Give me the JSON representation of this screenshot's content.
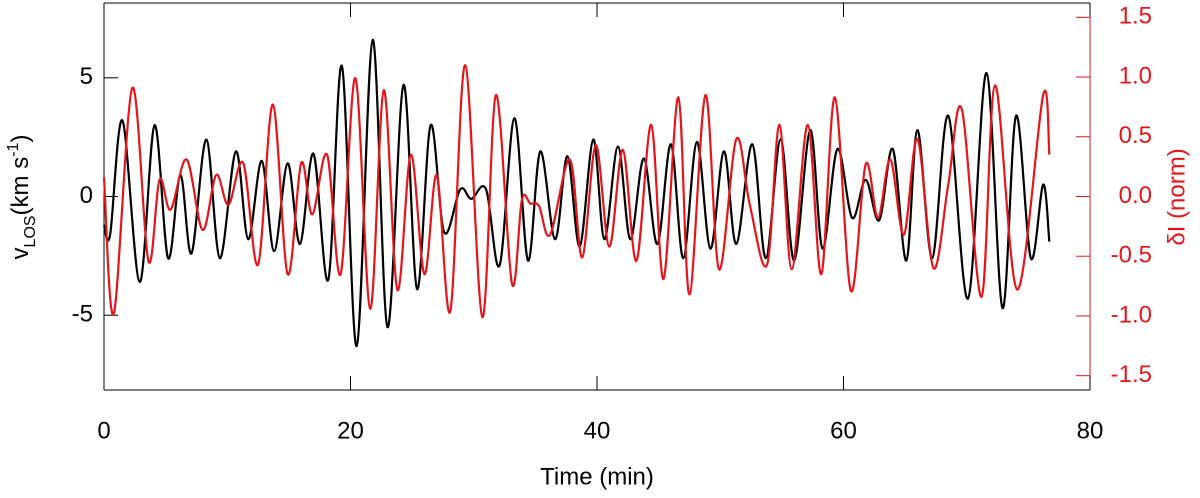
{
  "chart_data": {
    "type": "line",
    "xlabel": "Time (min)",
    "ylabel_parts": [
      "v",
      "LOS",
      "(km s",
      "-1",
      ")"
    ],
    "y2label": "δI (norm)",
    "xlim": [
      0,
      80
    ],
    "xticks": [
      0,
      20,
      40,
      60,
      80
    ],
    "ylim": [
      -8.15,
      8.15
    ],
    "yticks": [
      -5,
      0,
      5
    ],
    "y2lim": [
      -1.62,
      1.62
    ],
    "y2ticks": [
      -1.5,
      {
        "value": -1,
        "label": "-1.0"
      },
      -0.5,
      {
        "value": 0,
        "label": "0.0"
      },
      0.5,
      {
        "value": 1,
        "label": "1.0"
      },
      1.5
    ],
    "series": [
      {
        "color": "#000000",
        "x": [
          0,
          0.5,
          1.5,
          2.9,
          4.1,
          5.2,
          6.2,
          7.1,
          8.3,
          9.4,
          10.7,
          11.7,
          12.8,
          13.8,
          14.9,
          15.9,
          17,
          18.2,
          19.3,
          20.5,
          21.8,
          23,
          24.3,
          25.4,
          26.5,
          27.6,
          28.9,
          29.8,
          31,
          32.1,
          33.3,
          34.4,
          35.4,
          36.6,
          37.6,
          38.6,
          39.7,
          40.6,
          41.7,
          42.7,
          43.8,
          44.9,
          46,
          47,
          48.1,
          49.2,
          50.3,
          51.3,
          52.6,
          53.7,
          54.9,
          56,
          57.3,
          58.3,
          59.5,
          60.7,
          61.8,
          62.9,
          64,
          65.1,
          66,
          67.2,
          68.5,
          70.1,
          71.6,
          72.9,
          74,
          75.2,
          76.2,
          76.7
        ],
        "values": [
          -1.2,
          -1.6,
          3.2,
          -3.6,
          3.0,
          -2.6,
          0.9,
          -2.4,
          2.4,
          -2.6,
          1.9,
          -1.8,
          1.5,
          -2.3,
          1.4,
          -2.0,
          1.8,
          -3.5,
          5.5,
          -6.3,
          6.6,
          -5.5,
          4.7,
          -3.9,
          3.0,
          -1.5,
          0.3,
          -0.1,
          0.3,
          -2.9,
          3.3,
          -2.7,
          1.9,
          -1.8,
          1.7,
          -2.1,
          2.4,
          -1.8,
          2.1,
          -1.8,
          1.6,
          -2.0,
          2.2,
          -2.6,
          2.3,
          -2.2,
          1.9,
          -2.0,
          2.2,
          -2.6,
          2.4,
          -2.7,
          2.8,
          -2.2,
          2.0,
          -0.9,
          0.7,
          -1.0,
          2.0,
          -2.7,
          2.8,
          -2.6,
          3.4,
          -4.3,
          5.2,
          -4.7,
          3.4,
          -2.6,
          0.5,
          -1.9
        ]
      },
      {
        "color": "#e4161b",
        "axis": "y2",
        "x": [
          0,
          0.8,
          2.3,
          3.6,
          4.5,
          5.4,
          6.7,
          8,
          9.1,
          10.1,
          11.3,
          12.5,
          13.7,
          14.9,
          16,
          16.9,
          18.1,
          19.2,
          20.4,
          21.6,
          22.7,
          23.8,
          24.9,
          26,
          27,
          28.1,
          29.3,
          30.7,
          31.8,
          33.1,
          33.9,
          34.6,
          35.3,
          36.2,
          37.8,
          38.8,
          39.9,
          41,
          42.1,
          43.2,
          44.4,
          45.4,
          46.6,
          47.5,
          48.8,
          49.9,
          51.3,
          52.4,
          53.8,
          54.8,
          55.8,
          57.1,
          58.2,
          59.3,
          60.6,
          61.8,
          62.8,
          63.8,
          64.9,
          66,
          67.3,
          68.5,
          69.6,
          71.2,
          72.3,
          74.1,
          76.2,
          76.7
        ],
        "values": [
          0.16,
          -0.98,
          0.91,
          -0.54,
          0.14,
          -0.11,
          0.31,
          -0.28,
          0.18,
          -0.07,
          0.28,
          -0.57,
          0.77,
          -0.65,
          0.28,
          -0.15,
          0.35,
          -0.65,
          0.99,
          -0.94,
          0.89,
          -0.78,
          0.35,
          -0.65,
          0.18,
          -0.96,
          1.1,
          -1.01,
          0.85,
          -0.73,
          -0.03,
          -0.06,
          -0.08,
          -0.32,
          0.31,
          -0.51,
          0.43,
          -0.42,
          0.39,
          -0.54,
          0.6,
          -0.69,
          0.83,
          -0.82,
          0.85,
          -0.61,
          0.48,
          -0.07,
          -0.57,
          0.6,
          -0.61,
          0.6,
          -0.65,
          0.83,
          -0.79,
          0.27,
          -0.18,
          0.31,
          -0.32,
          0.48,
          -0.6,
          0.1,
          0.73,
          -0.84,
          0.93,
          -0.78,
          0.85,
          0.35
        ]
      }
    ]
  }
}
